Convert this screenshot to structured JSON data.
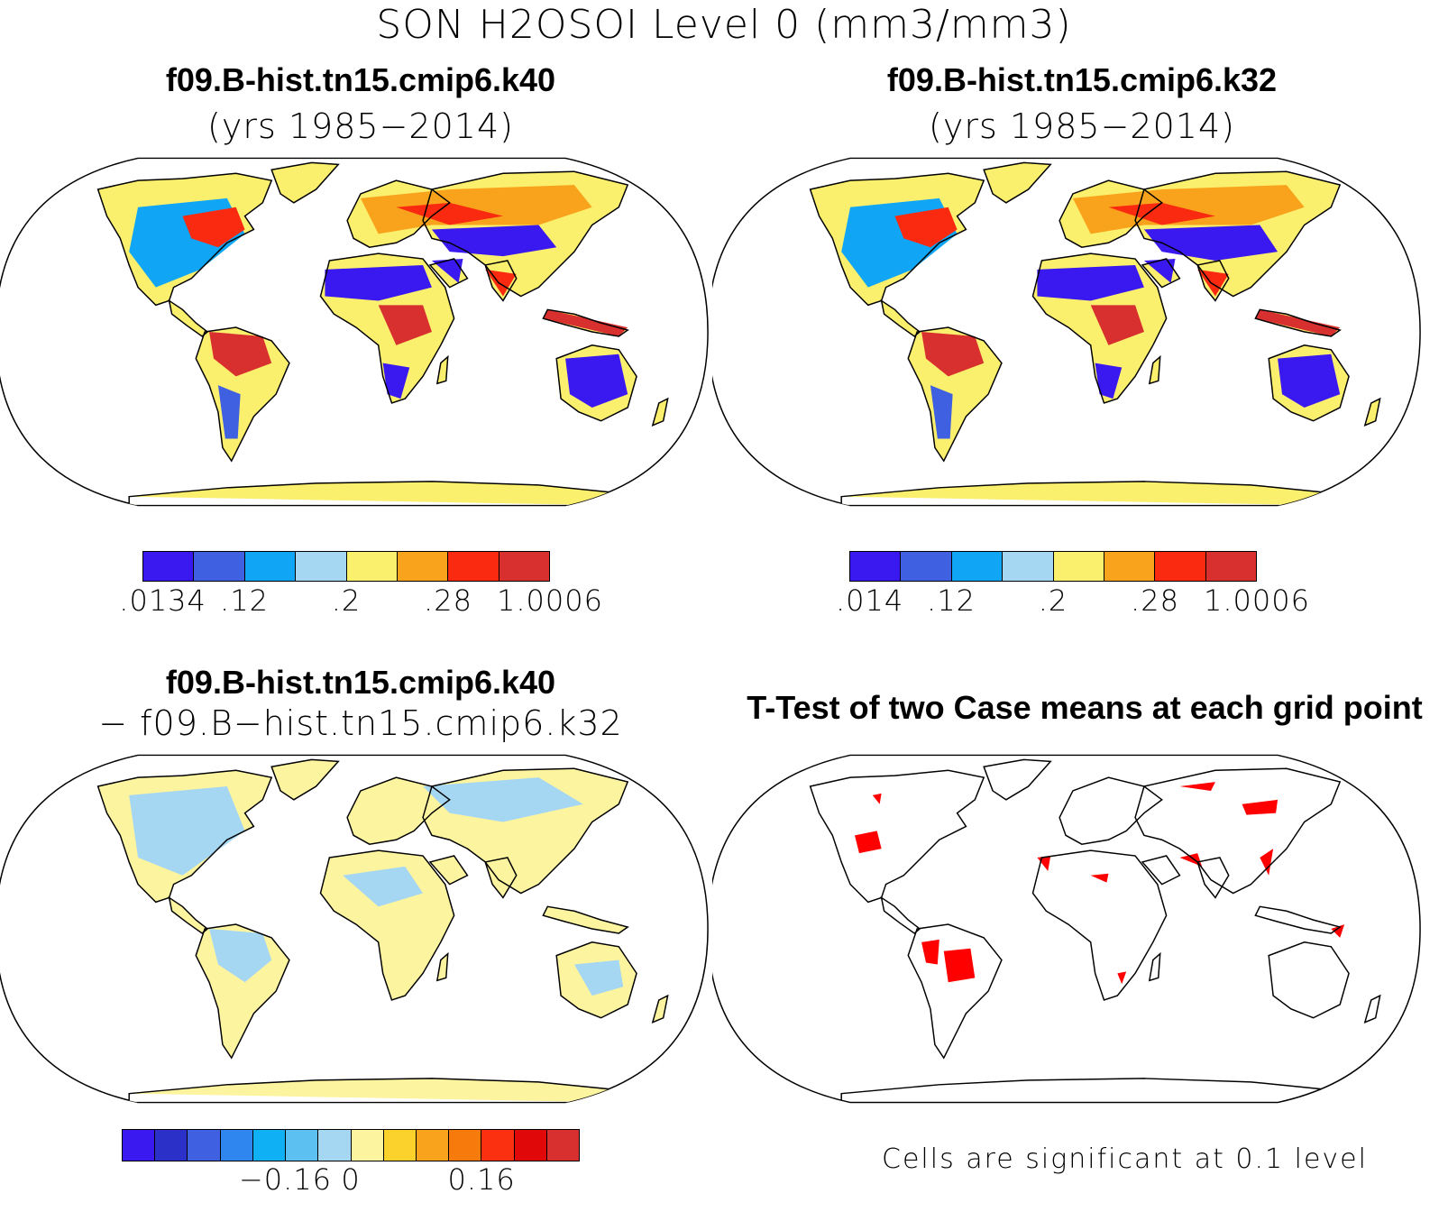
{
  "title": "SON H2OSOI Level 0 (mm3/mm3)",
  "panels": {
    "case1": {
      "name": "f09.B-hist.tn15.cmip6.k40",
      "years": "(yrs 1985−2014)"
    },
    "case2": {
      "name": "f09.B-hist.tn15.cmip6.k32",
      "years": "(yrs 1985−2014)"
    },
    "diff": {
      "line1": "f09.B-hist.tn15.cmip6.k40",
      "line2": "− f09.B−hist.tn15.cmip6.k32"
    },
    "ttest": {
      "title": "T-Test of two Case means at each grid point",
      "note": "Cells are significant at 0.1 level"
    }
  },
  "colorbars": {
    "case1": {
      "colors": [
        "#3a18f0",
        "#3f60e0",
        "#10a6f5",
        "#a6d7f2",
        "#fbef6e",
        "#f9a31c",
        "#fa2a10",
        "#d7302e"
      ],
      "labels": [
        ".0134",
        ".12",
        ".2",
        ".28",
        "1.0006"
      ]
    },
    "case2": {
      "colors": [
        "#3a18f0",
        "#3f60e0",
        "#10a6f5",
        "#a6d7f2",
        "#fbef6e",
        "#f9a31c",
        "#fa2a10",
        "#d7302e"
      ],
      "labels": [
        ".014",
        ".12",
        ".2",
        ".28",
        "1.0006"
      ]
    },
    "diff": {
      "colors": [
        "#3a18f0",
        "#2a30c8",
        "#3f60e0",
        "#2f86ee",
        "#10b0f5",
        "#5cc0f0",
        "#a6d7f2",
        "#fdf4a0",
        "#fbd22c",
        "#f9a31c",
        "#f77b0c",
        "#fa3010",
        "#e00808",
        "#d7302e"
      ],
      "labels": [
        "−0.16",
        "0",
        "0.16"
      ]
    }
  },
  "legend": {
    "significant_color": "#ff0000",
    "map_outline": "#000000"
  }
}
